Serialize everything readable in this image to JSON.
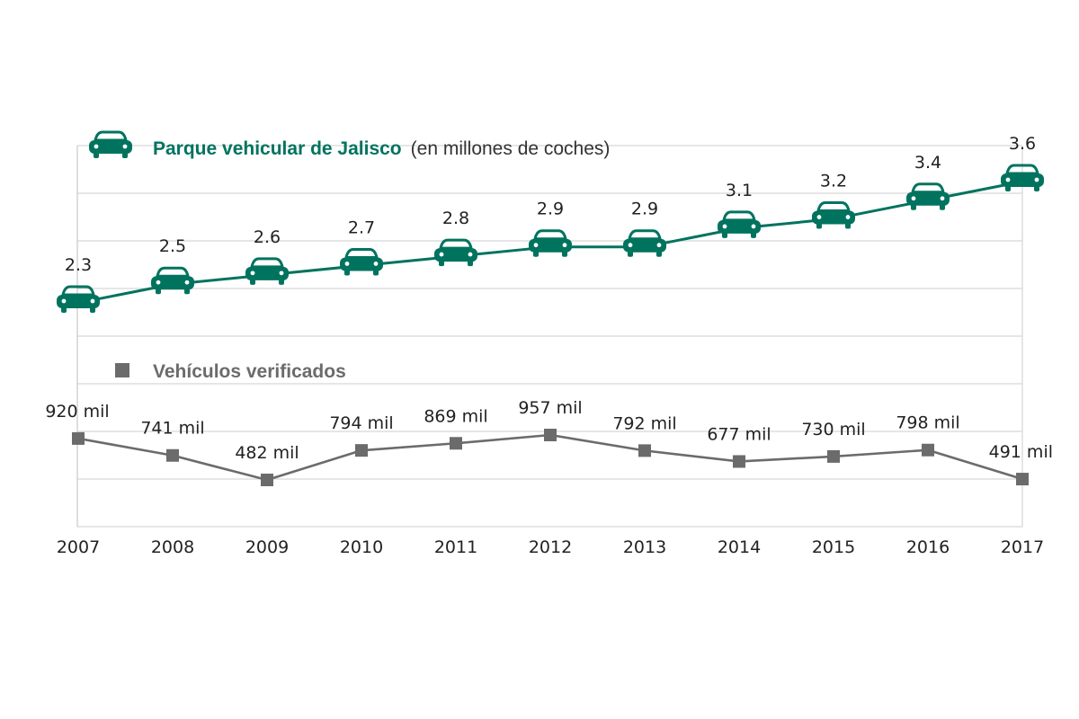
{
  "chart_data": {
    "type": "line",
    "x": [
      "2007",
      "2008",
      "2009",
      "2010",
      "2011",
      "2012",
      "2013",
      "2014",
      "2015",
      "2016",
      "2017"
    ],
    "series": [
      {
        "name": "Parque vehicular de Jalisco",
        "name_suffix": "(en millones de coches)",
        "unit": "millones de coches",
        "color": "#00735f",
        "marker": "car-icon",
        "values": [
          2.3,
          2.5,
          2.6,
          2.7,
          2.8,
          2.9,
          2.9,
          3.1,
          3.2,
          3.4,
          3.6
        ],
        "labels": [
          "2.3",
          "2.5",
          "2.6",
          "2.7",
          "2.8",
          "2.9",
          "2.9",
          "3.1",
          "3.2",
          "3.4",
          "3.6"
        ]
      },
      {
        "name": "Vehículos verificados",
        "unit": "mil",
        "color": "#6b6b6b",
        "marker": "square-icon",
        "values": [
          920,
          741,
          482,
          794,
          869,
          957,
          792,
          677,
          730,
          798,
          491
        ],
        "labels": [
          "920 mil",
          "741 mil",
          "482 mil",
          "794 mil",
          "869 mil",
          "957 mil",
          "792 mil",
          "677 mil",
          "730 mil",
          "798 mil",
          "491 mil"
        ]
      }
    ],
    "grid": true,
    "legend": "top-left",
    "xlabel": "",
    "ylabel": ""
  }
}
